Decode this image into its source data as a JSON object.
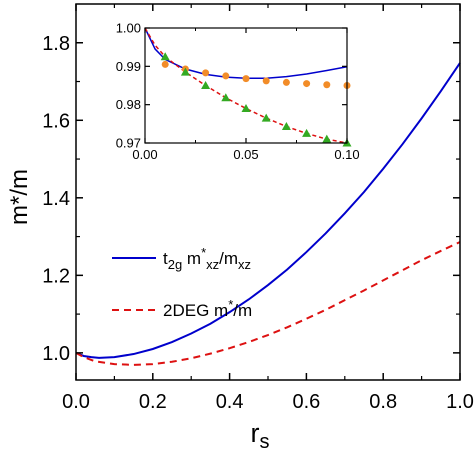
{
  "chart_data": [
    {
      "type": "line",
      "xlabel_main": "r",
      "xlabel_sub": "s",
      "ylabel": "m*/m",
      "xlim": [
        0.0,
        1.0
      ],
      "ylim": [
        0.93,
        1.9
      ],
      "x_ticks": [
        "0.0",
        "0.2",
        "0.4",
        "0.6",
        "0.8",
        "1.0"
      ],
      "y_ticks": [
        "1.0",
        "1.2",
        "1.4",
        "1.6",
        "1.8"
      ],
      "legend_placement": "center-left",
      "series": [
        {
          "name": "t2g m*xz/mxz",
          "name_parts": {
            "base": "t",
            "sub1": "2g",
            "mid": " m",
            "sup": "*",
            "sub2": "xz",
            "tail": "/m",
            "sub3": "xz"
          },
          "color": "#0000cc",
          "style": "solid",
          "x": [
            0.0,
            0.02,
            0.04,
            0.06,
            0.08,
            0.1,
            0.15,
            0.2,
            0.25,
            0.3,
            0.35,
            0.4,
            0.45,
            0.5,
            0.55,
            0.6,
            0.65,
            0.7,
            0.75,
            0.8,
            0.85,
            0.9,
            0.95,
            1.0
          ],
          "y": [
            1.0,
            0.992,
            0.989,
            0.987,
            0.988,
            0.989,
            0.997,
            1.01,
            1.028,
            1.05,
            1.075,
            1.105,
            1.138,
            1.175,
            1.215,
            1.26,
            1.308,
            1.36,
            1.415,
            1.475,
            1.538,
            1.605,
            1.675,
            1.748
          ]
        },
        {
          "name": "2DEG m*/m",
          "name_parts": {
            "base": "2DEG m",
            "sup": "*",
            "tail": "/m"
          },
          "color": "#dd1111",
          "style": "dashed",
          "x": [
            0.0,
            0.02,
            0.05,
            0.1,
            0.15,
            0.2,
            0.25,
            0.3,
            0.35,
            0.4,
            0.45,
            0.5,
            0.55,
            0.6,
            0.65,
            0.7,
            0.75,
            0.8,
            0.85,
            0.9,
            0.95,
            1.0
          ],
          "y": [
            1.0,
            0.989,
            0.978,
            0.971,
            0.969,
            0.971,
            0.977,
            0.986,
            0.998,
            1.012,
            1.028,
            1.046,
            1.066,
            1.088,
            1.111,
            1.136,
            1.161,
            1.187,
            1.213,
            1.239,
            1.263,
            1.286
          ]
        }
      ]
    },
    {
      "type": "line",
      "placement": "inset-top",
      "xlim": [
        0.0,
        0.1
      ],
      "ylim": [
        0.97,
        1.0
      ],
      "x_ticks": [
        "0.00",
        "0.05",
        "0.10"
      ],
      "y_ticks": [
        "0.97",
        "0.98",
        "0.99",
        "1.00"
      ],
      "series": [
        {
          "style": "solid",
          "color": "#0000cc",
          "x": [
            0.0,
            0.005,
            0.01,
            0.02,
            0.03,
            0.04,
            0.05,
            0.06,
            0.07,
            0.08,
            0.09,
            0.1
          ],
          "y": [
            1.0,
            0.9945,
            0.9918,
            0.9893,
            0.9879,
            0.9872,
            0.9869,
            0.9869,
            0.9873,
            0.988,
            0.9889,
            0.9899
          ]
        },
        {
          "style": "dashed",
          "color": "#dd1111",
          "x": [
            0.0,
            0.005,
            0.01,
            0.02,
            0.03,
            0.04,
            0.05,
            0.06,
            0.07,
            0.08,
            0.09,
            0.1
          ],
          "y": [
            1.0,
            0.9955,
            0.9925,
            0.9885,
            0.985,
            0.9818,
            0.979,
            0.9765,
            0.9743,
            0.9725,
            0.971,
            0.97
          ]
        },
        {
          "style": "markers-circle",
          "color": "#f28c28",
          "x": [
            0.01,
            0.02,
            0.03,
            0.04,
            0.05,
            0.06,
            0.07,
            0.08,
            0.09,
            0.1
          ],
          "y": [
            0.9905,
            0.9893,
            0.9883,
            0.9875,
            0.9868,
            0.9862,
            0.9858,
            0.9855,
            0.9852,
            0.985
          ]
        },
        {
          "style": "markers-triangle",
          "color": "#33aa22",
          "x": [
            0.01,
            0.02,
            0.03,
            0.04,
            0.05,
            0.06,
            0.07,
            0.08,
            0.09,
            0.1
          ],
          "y": [
            0.9925,
            0.9885,
            0.985,
            0.9818,
            0.979,
            0.9765,
            0.9743,
            0.9725,
            0.971,
            0.97
          ]
        }
      ]
    }
  ]
}
